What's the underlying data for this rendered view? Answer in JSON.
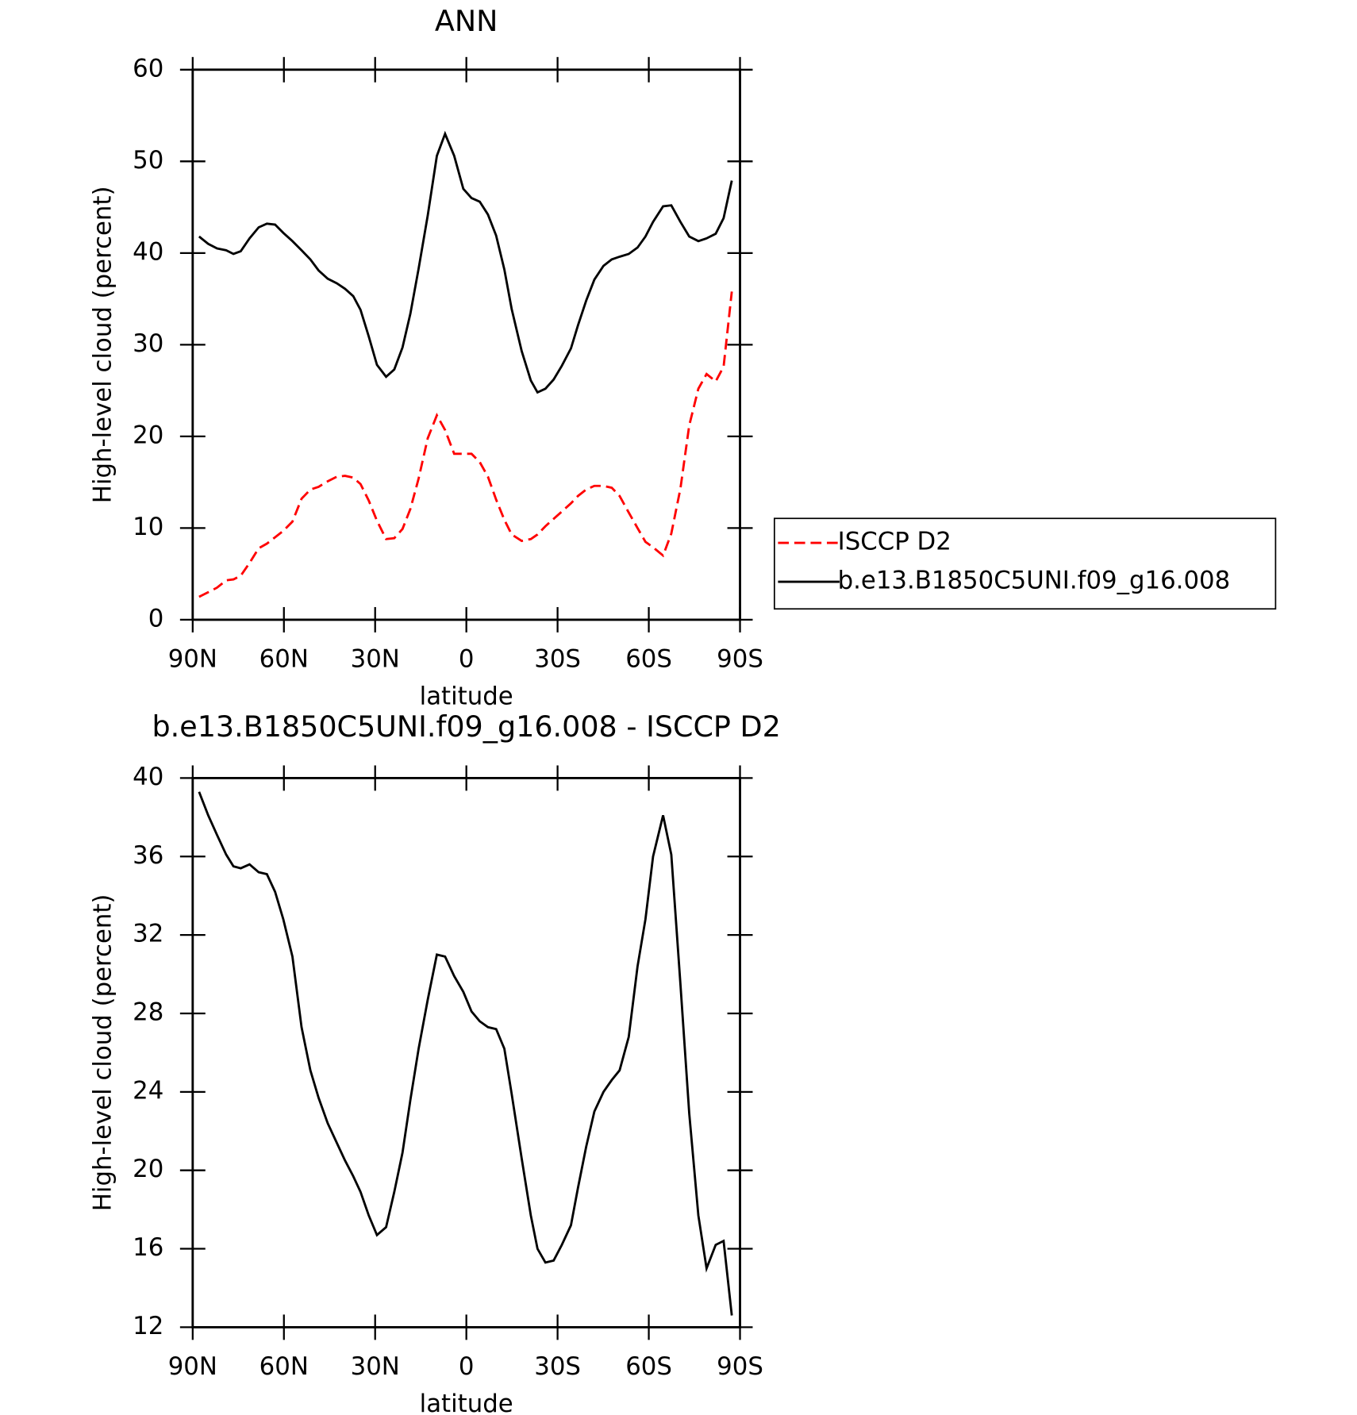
{
  "chart_data": [
    {
      "type": "line",
      "title": "ANN",
      "xlabel": "latitude",
      "ylabel": "High-level cloud (percent)",
      "x": [
        87.9,
        84.9,
        82.0,
        79.0,
        76.6,
        74.2,
        71.3,
        68.3,
        65.6,
        62.9,
        60.2,
        57.2,
        54.2,
        51.3,
        48.6,
        45.6,
        42.6,
        39.9,
        37.2,
        34.8,
        32.1,
        29.4,
        26.4,
        23.7,
        21.0,
        18.4,
        15.7,
        12.7,
        9.7,
        7.0,
        4.0,
        1.0,
        -1.7,
        -4.4,
        -7.1,
        -9.8,
        -12.5,
        -14.9,
        -18.2,
        -21.2,
        -23.4,
        -26.0,
        -28.7,
        -31.4,
        -34.4,
        -36.7,
        -39.4,
        -42.1,
        -45.1,
        -47.8,
        -50.4,
        -53.4,
        -56.3,
        -58.9,
        -61.4,
        -64.7,
        -67.4,
        -70.4,
        -73.3,
        -76.3,
        -79.0,
        -82.0,
        -84.6,
        -87.3
      ],
      "series": [
        {
          "name": "ISCCP D2",
          "color": "#ff0000",
          "dash": true,
          "values": [
            2.5,
            3,
            3.5,
            4.3,
            4.4,
            4.8,
            6.2,
            7.8,
            8.3,
            9,
            9.7,
            10.7,
            13.2,
            14.2,
            14.5,
            15.1,
            15.6,
            15.7,
            15.5,
            14.8,
            13,
            10.8,
            8.8,
            8.9,
            9.9,
            12.1,
            15.4,
            19.8,
            22.3,
            20.7,
            18.1,
            18.1,
            18.1,
            17.2,
            15.6,
            13.1,
            10.9,
            9.3,
            8.6,
            8.8,
            9.3,
            10.2,
            11,
            11.8,
            12.7,
            13.5,
            14.2,
            14.6,
            14.6,
            14.4,
            13.5,
            11.7,
            10,
            8.5,
            7.9,
            7,
            9.4,
            14.3,
            21.2,
            25.2,
            26.8,
            26,
            27.6,
            35.8
          ]
        },
        {
          "name": "b.e13.B1850C5UNI.f09_g16.008",
          "color": "#000000",
          "dash": false,
          "values": [
            41.8,
            41,
            40.5,
            40.3,
            39.9,
            40.2,
            41.6,
            42.8,
            43.2,
            43.1,
            42.2,
            41.3,
            40.3,
            39.3,
            38.1,
            37.2,
            36.7,
            36.1,
            35.3,
            33.8,
            30.9,
            27.8,
            26.5,
            27.3,
            29.7,
            33.4,
            38.3,
            44.1,
            50.6,
            53,
            50.6,
            47,
            46,
            45.6,
            44.2,
            41.9,
            38.2,
            33.9,
            29.3,
            26.1,
            24.8,
            25.2,
            26.2,
            27.7,
            29.6,
            32.1,
            34.8,
            37.1,
            38.6,
            39.3,
            39.6,
            39.9,
            40.6,
            41.8,
            43.4,
            45.1,
            45.2,
            43.4,
            41.8,
            41.3,
            41.6,
            42.1,
            43.8,
            47.9
          ]
        }
      ],
      "xlim": [
        90,
        -90
      ],
      "xticks": [
        {
          "value": 90,
          "label": "90N"
        },
        {
          "value": 60,
          "label": "60N"
        },
        {
          "value": 30,
          "label": "30N"
        },
        0,
        {
          "value": -30,
          "label": "30S"
        },
        {
          "value": -60,
          "label": "60S"
        },
        {
          "value": -90,
          "label": "90S"
        }
      ],
      "ylim": [
        0,
        60
      ],
      "yticks": [
        0,
        10,
        20,
        30,
        40,
        50,
        60
      ],
      "legend": "right"
    },
    {
      "type": "line",
      "title": "b.e13.B1850C5UNI.f09_g16.008 - ISCCP D2",
      "xlabel": "latitude",
      "ylabel": "High-level cloud (percent)",
      "x": [
        87.9,
        84.9,
        82.0,
        79.0,
        76.6,
        74.2,
        71.3,
        68.3,
        65.6,
        62.9,
        60.2,
        57.2,
        54.2,
        51.3,
        48.6,
        45.6,
        42.6,
        39.9,
        37.2,
        34.8,
        32.1,
        29.4,
        26.4,
        23.7,
        21.0,
        18.4,
        15.7,
        12.7,
        9.7,
        7.0,
        4.0,
        1.0,
        -1.7,
        -4.4,
        -7.1,
        -9.8,
        -12.5,
        -14.9,
        -18.2,
        -21.2,
        -23.4,
        -26.0,
        -28.7,
        -31.4,
        -34.4,
        -36.7,
        -39.4,
        -42.1,
        -45.1,
        -47.8,
        -50.4,
        -53.4,
        -56.3,
        -58.9,
        -61.4,
        -64.7,
        -67.4,
        -70.4,
        -73.3,
        -76.3,
        -79.0,
        -82.0,
        -84.6,
        -87.3
      ],
      "series": [
        {
          "color": "#000000",
          "dash": false,
          "values": [
            39.3,
            38.1,
            37.1,
            36.1,
            35.5,
            35.4,
            35.6,
            35.2,
            35.1,
            34.2,
            32.8,
            30.9,
            27.3,
            25.1,
            23.7,
            22.4,
            21.4,
            20.5,
            19.7,
            18.9,
            17.7,
            16.7,
            17.1,
            18.9,
            20.9,
            23.6,
            26.2,
            28.7,
            31,
            30.9,
            29.9,
            29.1,
            28.1,
            27.6,
            27.3,
            27.2,
            26.2,
            23.9,
            20.6,
            17.7,
            16,
            15.3,
            15.4,
            16.2,
            17.2,
            19.1,
            21.2,
            23,
            24,
            24.6,
            25.1,
            26.8,
            30.4,
            32.8,
            36,
            38.1,
            36.1,
            29.5,
            22.9,
            17.7,
            15,
            16.2,
            16.4,
            12.6
          ]
        }
      ],
      "xlim": [
        90,
        -90
      ],
      "xticks": [
        {
          "value": 90,
          "label": "90N"
        },
        {
          "value": 60,
          "label": "60N"
        },
        {
          "value": 30,
          "label": "30N"
        },
        0,
        {
          "value": -30,
          "label": "30S"
        },
        {
          "value": -60,
          "label": "60S"
        },
        {
          "value": -90,
          "label": "90S"
        }
      ],
      "ylim": [
        12,
        40
      ],
      "yticks": [
        12,
        16,
        20,
        24,
        28,
        32,
        36,
        40
      ]
    }
  ]
}
